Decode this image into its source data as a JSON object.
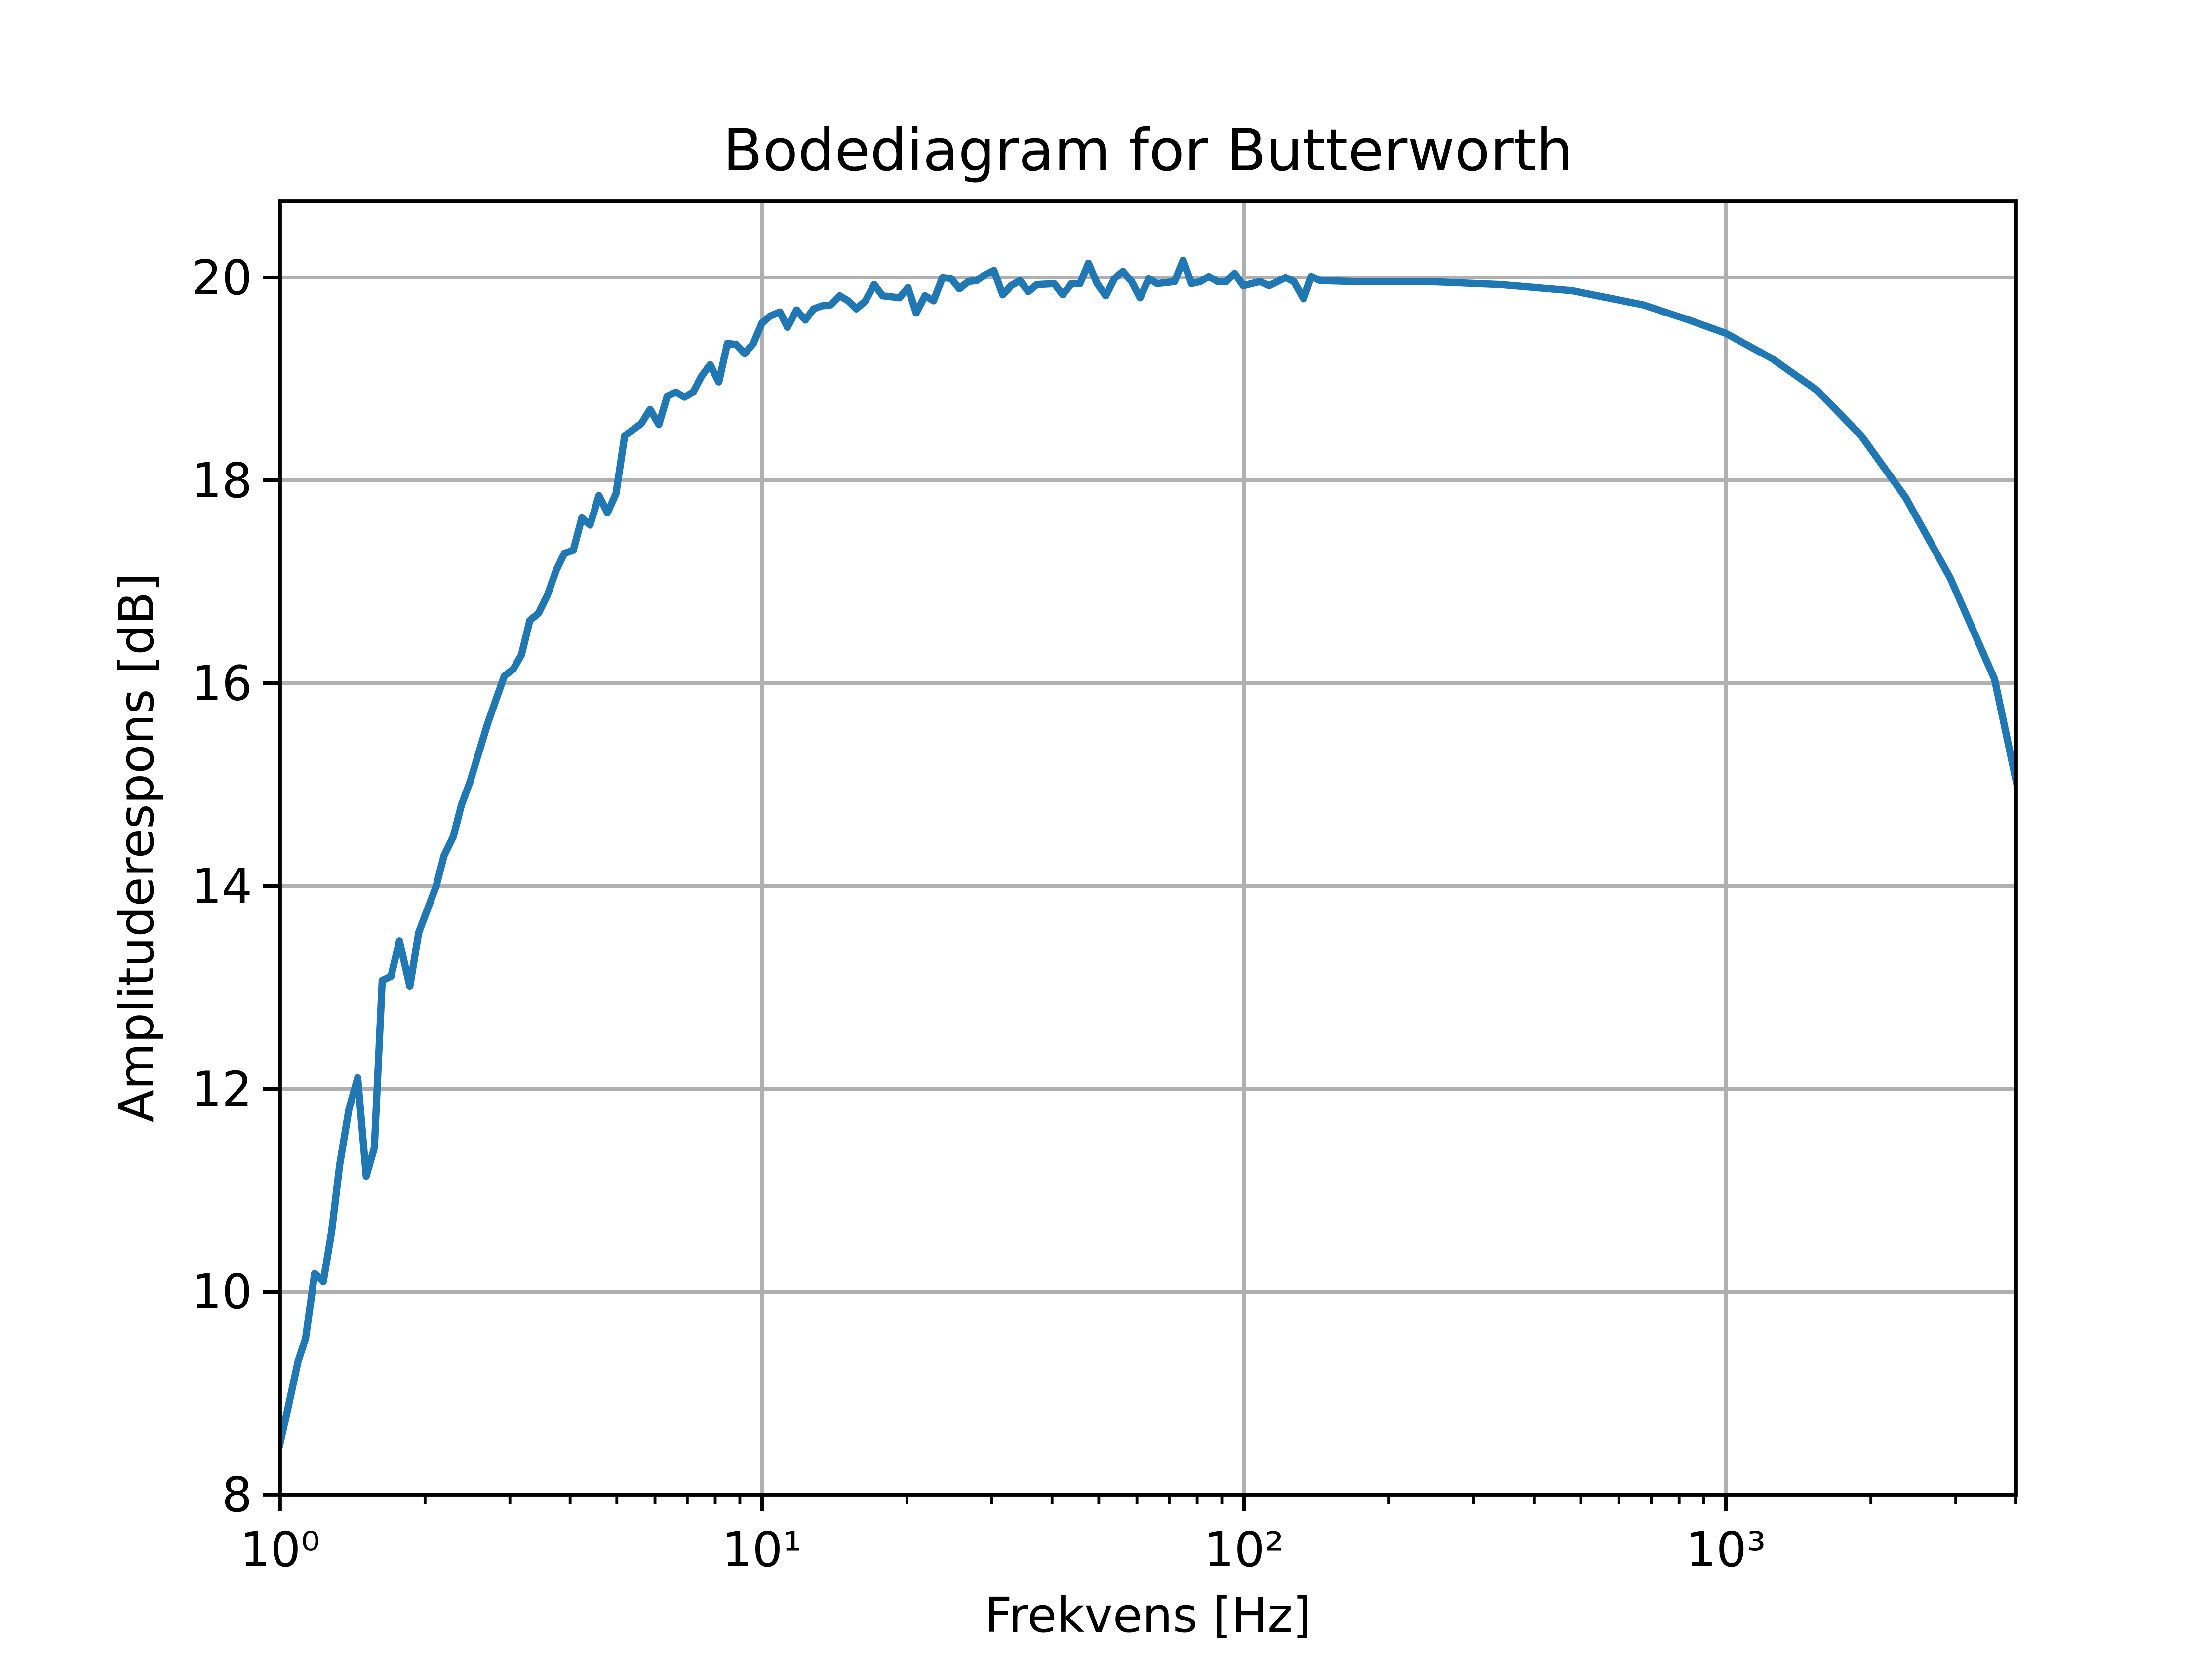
{
  "chart_data": {
    "type": "line",
    "title": "Bodediagram for Butterworth",
    "xlabel": "Frekvens [Hz]",
    "ylabel": "Amplituderespons [dB]",
    "xscale": "log",
    "grid": true,
    "color": "#1f77b4",
    "xlim": [
      1,
      4000
    ],
    "ylim": [
      8,
      20.75
    ],
    "xticks": [
      {
        "value": 1,
        "label": "10⁰"
      },
      {
        "value": 10,
        "label": "10¹"
      },
      {
        "value": 100,
        "label": "10²"
      },
      {
        "value": 1000,
        "label": "10³"
      }
    ],
    "xminorticks": [
      2,
      3,
      4,
      5,
      6,
      7,
      8,
      9,
      20,
      30,
      40,
      50,
      60,
      70,
      80,
      90,
      200,
      300,
      400,
      500,
      600,
      700,
      800,
      900,
      2000,
      3000,
      4000
    ],
    "yticks": [
      8,
      10,
      12,
      14,
      16,
      18,
      20
    ],
    "x": [
      1,
      1.04,
      1.09,
      1.13,
      1.18,
      1.23,
      1.28,
      1.33,
      1.39,
      1.45,
      1.51,
      1.57,
      1.63,
      1.7,
      1.77,
      1.86,
      1.94,
      2.11,
      2.19,
      2.29,
      2.38,
      2.48,
      2.7,
      2.92,
      3.05,
      3.17,
      3.3,
      3.44,
      3.59,
      3.74,
      3.89,
      4.06,
      4.23,
      4.4,
      4.59,
      4.78,
      4.98,
      5.19,
      5.62,
      5.86,
      6.11,
      6.36,
      6.63,
      6.91,
      7.2,
      7.5,
      7.81,
      8.14,
      8.48,
      8.84,
      9.21,
      9.6,
      10,
      10.4,
      10.9,
      11.3,
      11.8,
      12.3,
      12.8,
      13.3,
      13.9,
      14.5,
      15.1,
      15.7,
      16.4,
      17.1,
      17.8,
      19.3,
      20.1,
      20.9,
      21.8,
      22.7,
      23.7,
      24.7,
      25.7,
      26.8,
      27.9,
      29.1,
      30.3,
      31.6,
      32.9,
      34.3,
      35.7,
      37.2,
      40.4,
      42.1,
      43.9,
      45.7,
      47.6,
      49.6,
      51.7,
      53.9,
      56.1,
      58.5,
      60.9,
      63.5,
      66.1,
      71.8,
      74.8,
      77.9,
      81.2,
      84.6,
      88.2,
      91.9,
      95.7,
      99.7,
      108,
      113,
      122,
      127,
      133,
      138,
      144,
      169,
      243,
      342,
      480,
      674,
      828,
      1000,
      1248,
      1544,
      1910,
      2361,
      2920,
      3611,
      4000
    ],
    "values": [
      8.5,
      8.86,
      9.31,
      9.54,
      10.18,
      10.1,
      10.59,
      11.25,
      11.8,
      12.11,
      11.14,
      11.42,
      13.07,
      13.11,
      13.46,
      13.01,
      13.54,
      14.0,
      14.3,
      14.49,
      14.8,
      15.03,
      15.61,
      16.07,
      16.14,
      16.28,
      16.62,
      16.69,
      16.87,
      17.11,
      17.28,
      17.31,
      17.63,
      17.56,
      17.85,
      17.68,
      17.87,
      18.44,
      18.56,
      18.7,
      18.55,
      18.83,
      18.87,
      18.82,
      18.87,
      19.03,
      19.14,
      18.97,
      19.35,
      19.34,
      19.25,
      19.35,
      19.55,
      19.62,
      19.66,
      19.51,
      19.68,
      19.58,
      19.69,
      19.72,
      19.73,
      19.82,
      19.77,
      19.69,
      19.77,
      19.93,
      19.82,
      19.8,
      19.9,
      19.65,
      19.82,
      19.77,
      20.0,
      19.99,
      19.89,
      19.96,
      19.97,
      20.03,
      20.07,
      19.83,
      19.92,
      19.97,
      19.86,
      19.93,
      19.94,
      19.83,
      19.94,
      19.94,
      20.14,
      19.94,
      19.82,
      19.99,
      20.06,
      19.96,
      19.8,
      19.99,
      19.94,
      19.96,
      20.17,
      19.94,
      19.96,
      20.01,
      19.96,
      19.96,
      20.04,
      19.92,
      19.96,
      19.92,
      20.0,
      19.96,
      19.79,
      20.01,
      19.97,
      19.96,
      19.96,
      19.93,
      19.87,
      19.73,
      19.59,
      19.45,
      19.2,
      18.89,
      18.44,
      17.83,
      17.04,
      16.04,
      15.04
    ]
  }
}
